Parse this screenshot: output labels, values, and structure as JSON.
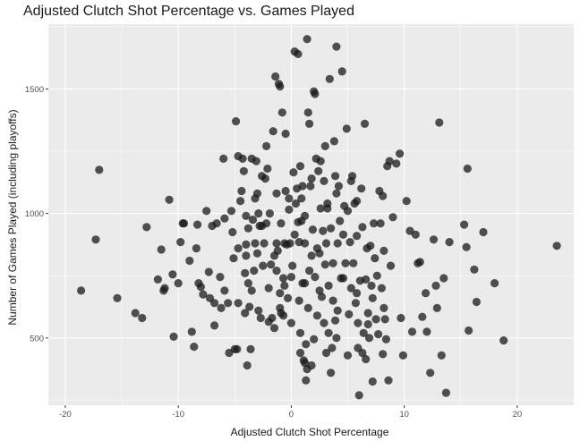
{
  "chart_data": {
    "type": "scatter",
    "title": "Adjusted Clutch Shot Percentage vs. Games Played",
    "xlabel": "Adjusted Clutch Shot Percentage",
    "ylabel": "Number of Games Played (including playoffs)",
    "xlim": [
      -21.5,
      25
    ],
    "ylim": [
      230,
      1760
    ],
    "x_ticks": [
      -20,
      -10,
      0,
      10,
      20
    ],
    "x_tick_labels": [
      "-20",
      "-10",
      "0",
      "10",
      "20"
    ],
    "y_ticks": [
      500,
      1000,
      1500
    ],
    "y_tick_labels": [
      "500",
      "1000",
      "1500"
    ],
    "grid": true,
    "legend": "none",
    "colors": {
      "panel_background": "#ebebeb",
      "gridline": "#ffffff",
      "point": "#1a1a1a"
    },
    "point_opacity": 0.75,
    "points": [
      [
        -18.6,
        690
      ],
      [
        -17.3,
        895
      ],
      [
        -17.0,
        1175
      ],
      [
        -15.4,
        660
      ],
      [
        -13.8,
        600
      ],
      [
        -13.2,
        580
      ],
      [
        -12.8,
        945
      ],
      [
        -11.8,
        735
      ],
      [
        -11.5,
        855
      ],
      [
        -11.3,
        690
      ],
      [
        -11.2,
        700
      ],
      [
        -10.8,
        1055
      ],
      [
        -10.5,
        755
      ],
      [
        -10.4,
        505
      ],
      [
        -10.0,
        720
      ],
      [
        -9.8,
        885
      ],
      [
        -9.6,
        960
      ],
      [
        -9.5,
        960
      ],
      [
        -9.0,
        810
      ],
      [
        -8.8,
        525
      ],
      [
        -8.6,
        465
      ],
      [
        -8.4,
        860
      ],
      [
        -8.3,
        955
      ],
      [
        -8.2,
        720
      ],
      [
        -8.0,
        705
      ],
      [
        -7.8,
        675
      ],
      [
        -7.5,
        1010
      ],
      [
        -7.3,
        765
      ],
      [
        -7.2,
        660
      ],
      [
        -7.0,
        950
      ],
      [
        -6.8,
        640
      ],
      [
        -6.6,
        960
      ],
      [
        -6.3,
        745
      ],
      [
        -6.2,
        620
      ],
      [
        -6.0,
        1220
      ],
      [
        -5.9,
        980
      ],
      [
        -5.6,
        640
      ],
      [
        -5.5,
        440
      ],
      [
        -5.3,
        1010
      ],
      [
        -5.2,
        925
      ],
      [
        -5.0,
        455
      ],
      [
        -4.9,
        1370
      ],
      [
        -4.8,
        455
      ],
      [
        -4.7,
        860
      ],
      [
        -4.5,
        1050
      ],
      [
        -4.4,
        1090
      ],
      [
        -4.3,
        1220
      ],
      [
        -4.2,
        1170
      ],
      [
        -4.1,
        760
      ],
      [
        -4.0,
        875
      ],
      [
        -3.9,
        390
      ],
      [
        -3.8,
        940
      ],
      [
        -3.7,
        625
      ],
      [
        -3.6,
        455
      ],
      [
        -3.5,
        690
      ],
      [
        -3.4,
        975
      ],
      [
        -3.3,
        770
      ],
      [
        -3.2,
        1060
      ],
      [
        -3.1,
        1210
      ],
      [
        -3.0,
        840
      ],
      [
        -2.9,
        1000
      ],
      [
        -2.8,
        950
      ],
      [
        -2.7,
        580
      ],
      [
        -2.6,
        1150
      ],
      [
        -2.5,
        790
      ],
      [
        -2.4,
        880
      ],
      [
        -2.3,
        1140
      ],
      [
        -2.2,
        960
      ],
      [
        -2.1,
        1180
      ],
      [
        -2.0,
        565
      ],
      [
        -1.9,
        1000
      ],
      [
        -1.8,
        795
      ],
      [
        -1.7,
        580
      ],
      [
        -1.6,
        1330
      ],
      [
        -1.5,
        830
      ],
      [
        -1.4,
        1550
      ],
      [
        -1.3,
        880
      ],
      [
        -1.2,
        850
      ],
      [
        -1.1,
        1520
      ],
      [
        -1.0,
        680
      ],
      [
        -0.9,
        960
      ],
      [
        -0.8,
        1405
      ],
      [
        -0.7,
        740
      ],
      [
        -0.6,
        880
      ],
      [
        -0.5,
        1090
      ],
      [
        -0.4,
        875
      ],
      [
        -0.3,
        660
      ],
      [
        -0.2,
        1015
      ],
      [
        -0.1,
        880
      ],
      [
        0.0,
        745
      ],
      [
        0.1,
        790
      ],
      [
        0.2,
        1165
      ],
      [
        0.3,
        915
      ],
      [
        0.4,
        1040
      ],
      [
        0.5,
        1100
      ],
      [
        0.6,
        965
      ],
      [
        0.7,
        885
      ],
      [
        0.8,
        520
      ],
      [
        0.9,
        1060
      ],
      [
        1.0,
        720
      ],
      [
        1.1,
        410
      ],
      [
        1.2,
        990
      ],
      [
        1.3,
        475
      ],
      [
        1.4,
        375
      ],
      [
        1.5,
        1405
      ],
      [
        1.6,
        770
      ],
      [
        1.7,
        1110
      ],
      [
        1.8,
        830
      ],
      [
        1.9,
        935
      ],
      [
        2.0,
        1490
      ],
      [
        2.1,
        745
      ],
      [
        2.2,
        1220
      ],
      [
        2.3,
        590
      ],
      [
        2.4,
        1170
      ],
      [
        2.5,
        840
      ],
      [
        2.6,
        1020
      ],
      [
        2.7,
        665
      ],
      [
        2.8,
        930
      ],
      [
        2.9,
        1130
      ],
      [
        3.0,
        795
      ],
      [
        3.1,
        880
      ],
      [
        3.2,
        1020
      ],
      [
        3.3,
        710
      ],
      [
        3.4,
        1540
      ],
      [
        3.5,
        940
      ],
      [
        3.6,
        460
      ],
      [
        3.7,
        800
      ],
      [
        3.8,
        1290
      ],
      [
        3.9,
        570
      ],
      [
        4.0,
        1670
      ],
      [
        4.1,
        880
      ],
      [
        4.2,
        1110
      ],
      [
        4.3,
        970
      ],
      [
        4.4,
        740
      ],
      [
        4.5,
        1570
      ],
      [
        4.6,
        915
      ],
      [
        4.7,
        1030
      ],
      [
        4.8,
        800
      ],
      [
        4.9,
        1340
      ],
      [
        5.0,
        1010
      ],
      [
        5.1,
        595
      ],
      [
        5.2,
        885
      ],
      [
        5.3,
        700
      ],
      [
        5.4,
        1150
      ],
      [
        5.5,
        800
      ],
      [
        5.6,
        1040
      ],
      [
        5.7,
        640
      ],
      [
        5.8,
        910
      ],
      [
        5.9,
        460
      ],
      [
        6.0,
        270
      ],
      [
        6.1,
        730
      ],
      [
        6.2,
        1100
      ],
      [
        6.3,
        945
      ],
      [
        6.4,
        520
      ],
      [
        6.5,
        1360
      ],
      [
        6.6,
        735
      ],
      [
        6.7,
        860
      ],
      [
        6.8,
        555
      ],
      [
        6.9,
        500
      ],
      [
        7.0,
        870
      ],
      [
        7.1,
        710
      ],
      [
        7.2,
        325
      ],
      [
        7.3,
        960
      ],
      [
        7.4,
        820
      ],
      [
        7.5,
        575
      ],
      [
        7.6,
        750
      ],
      [
        7.7,
        515
      ],
      [
        7.8,
        1090
      ],
      [
        7.9,
        960
      ],
      [
        8.0,
        700
      ],
      [
        8.1,
        1070
      ],
      [
        8.2,
        850
      ],
      [
        8.3,
        575
      ],
      [
        8.4,
        495
      ],
      [
        8.5,
        1190
      ],
      [
        8.6,
        330
      ],
      [
        8.7,
        1210
      ],
      [
        8.8,
        790
      ],
      [
        9.0,
        985
      ],
      [
        9.3,
        1200
      ],
      [
        9.6,
        1240
      ],
      [
        10.2,
        1050
      ],
      [
        10.5,
        930
      ],
      [
        10.7,
        525
      ],
      [
        11.0,
        915
      ],
      [
        11.2,
        800
      ],
      [
        11.4,
        805
      ],
      [
        11.6,
        585
      ],
      [
        12.0,
        525
      ],
      [
        12.3,
        360
      ],
      [
        12.6,
        895
      ],
      [
        12.9,
        620
      ],
      [
        13.1,
        1365
      ],
      [
        13.3,
        430
      ],
      [
        13.5,
        740
      ],
      [
        13.7,
        280
      ],
      [
        14.0,
        885
      ],
      [
        15.3,
        955
      ],
      [
        15.5,
        865
      ],
      [
        15.6,
        1180
      ],
      [
        15.7,
        530
      ],
      [
        16.2,
        775
      ],
      [
        16.4,
        645
      ],
      [
        17.0,
        925
      ],
      [
        18.0,
        720
      ],
      [
        18.8,
        490
      ],
      [
        23.5,
        870
      ],
      [
        1.4,
        1700
      ],
      [
        0.3,
        1650
      ],
      [
        0.6,
        1640
      ],
      [
        2.1,
        1480
      ],
      [
        -1.0,
        1510
      ],
      [
        1.6,
        1360
      ],
      [
        -2.2,
        1270
      ],
      [
        3.0,
        1270
      ],
      [
        -0.5,
        1320
      ],
      [
        1.8,
        1140
      ],
      [
        2.6,
        1210
      ],
      [
        -4.7,
        1230
      ],
      [
        3.9,
        1150
      ],
      [
        5.3,
        1130
      ],
      [
        -3.0,
        1080
      ],
      [
        0.8,
        1190
      ],
      [
        -1.3,
        1080
      ],
      [
        -2.6,
        950
      ],
      [
        0.9,
        970
      ],
      [
        -0.2,
        1060
      ],
      [
        2.5,
        690
      ],
      [
        -3.5,
        1220
      ],
      [
        4.0,
        1080
      ],
      [
        -4.0,
        990
      ],
      [
        5.8,
        1050
      ],
      [
        1.0,
        1110
      ],
      [
        3.2,
        1040
      ],
      [
        -0.9,
        600
      ],
      [
        1.3,
        330
      ],
      [
        0.8,
        440
      ],
      [
        1.2,
        400
      ],
      [
        1.8,
        390
      ],
      [
        3.5,
        360
      ],
      [
        5.0,
        430
      ],
      [
        6.3,
        440
      ],
      [
        4.0,
        500
      ],
      [
        2.0,
        495
      ],
      [
        3.3,
        520
      ],
      [
        -1.5,
        540
      ],
      [
        -2.9,
        610
      ],
      [
        -4.7,
        640
      ],
      [
        -3.8,
        720
      ],
      [
        -5.9,
        690
      ],
      [
        -6.8,
        550
      ],
      [
        -4.1,
        600
      ],
      [
        -2.0,
        700
      ],
      [
        -0.7,
        590
      ],
      [
        1.5,
        620
      ],
      [
        3.7,
        650
      ],
      [
        4.6,
        740
      ],
      [
        5.8,
        680
      ],
      [
        7.2,
        660
      ],
      [
        6.8,
        600
      ],
      [
        8.2,
        620
      ],
      [
        9.7,
        580
      ],
      [
        11.9,
        680
      ],
      [
        12.8,
        710
      ],
      [
        1.2,
        720
      ],
      [
        0.0,
        560
      ],
      [
        -1.0,
        620
      ],
      [
        2.9,
        560
      ],
      [
        4.1,
        610
      ],
      [
        5.9,
        560
      ],
      [
        6.6,
        415
      ],
      [
        8.1,
        435
      ],
      [
        9.9,
        430
      ],
      [
        3.1,
        440
      ],
      [
        0.7,
        650
      ],
      [
        -0.6,
        710
      ],
      [
        2.3,
        860
      ],
      [
        1.2,
        880
      ],
      [
        -1.3,
        770
      ],
      [
        -3.2,
        880
      ],
      [
        -5.1,
        820
      ],
      [
        -4.0,
        830
      ]
    ]
  }
}
